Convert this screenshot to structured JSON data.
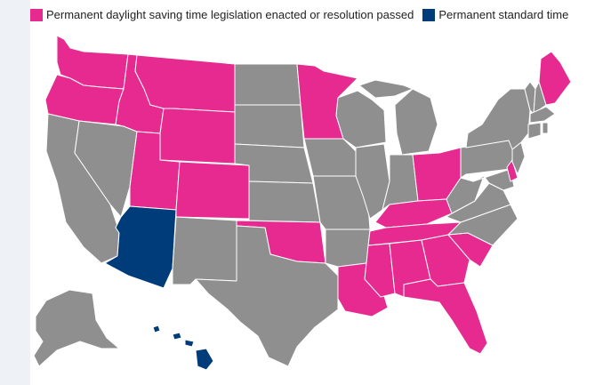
{
  "legend": {
    "items": [
      {
        "label": "Permanent daylight saving time legislation enacted or resolution passed",
        "color": "#e62a8f"
      },
      {
        "label": "Permanent standard time",
        "color": "#003b7a"
      }
    ]
  },
  "colors": {
    "other": "#8f8f8f",
    "dst": "#e62a8f",
    "standard": "#003b7a"
  },
  "map_data": {
    "dst_states": [
      "WA",
      "OR",
      "ID",
      "MT",
      "WY",
      "UT",
      "CO",
      "OK",
      "MN",
      "OH",
      "KY",
      "TN",
      "MS",
      "AL",
      "GA",
      "FL",
      "SC",
      "LA",
      "DE",
      "ME"
    ],
    "standard_time_states": [
      "AZ",
      "HI"
    ]
  }
}
